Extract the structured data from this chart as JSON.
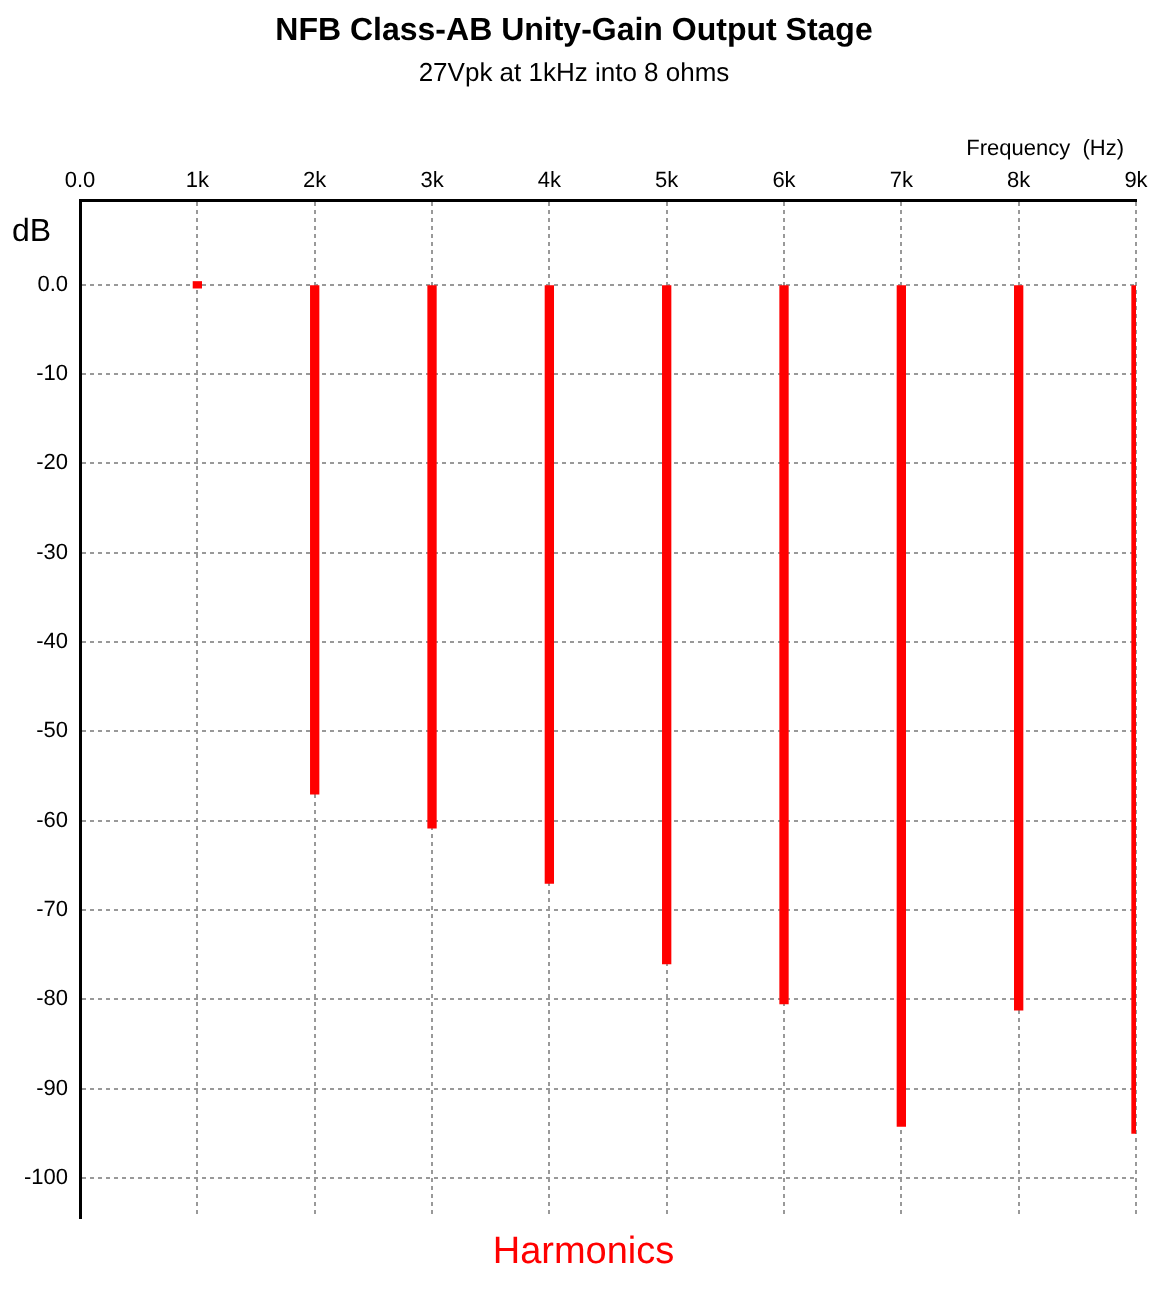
{
  "chart_data": {
    "type": "bar",
    "title": "NFB Class-AB Unity-Gain Output Stage",
    "subtitle": "27Vpk at 1kHz into 8 ohms",
    "xlabel": "Frequency  (Hz)",
    "ylabel": "dB",
    "x": [
      1000,
      2000,
      3000,
      4000,
      5000,
      6000,
      7000,
      8000,
      9000
    ],
    "series": [
      {
        "name": "Harmonics",
        "color": "#ff0000",
        "values": [
          0,
          -57,
          -60.8,
          -67,
          -76,
          -80.5,
          -94.2,
          -81.2,
          -95
        ]
      }
    ],
    "xlim": [
      0,
      9000
    ],
    "xticks": [
      {
        "value": 0,
        "label": "0.0"
      },
      {
        "value": 1000,
        "label": "1k"
      },
      {
        "value": 2000,
        "label": "2k"
      },
      {
        "value": 3000,
        "label": "3k"
      },
      {
        "value": 4000,
        "label": "4k"
      },
      {
        "value": 5000,
        "label": "5k"
      },
      {
        "value": 6000,
        "label": "6k"
      },
      {
        "value": 7000,
        "label": "7k"
      },
      {
        "value": 8000,
        "label": "8k"
      },
      {
        "value": 9000,
        "label": "9k"
      }
    ],
    "ylim": [
      -104.5,
      9.5
    ],
    "yticks": [
      {
        "value": 0,
        "label": "0.0"
      },
      -10,
      -20,
      -30,
      -40,
      -50,
      -60,
      -70,
      -80,
      -90,
      -100
    ],
    "grid": true,
    "legend": "bottom"
  }
}
